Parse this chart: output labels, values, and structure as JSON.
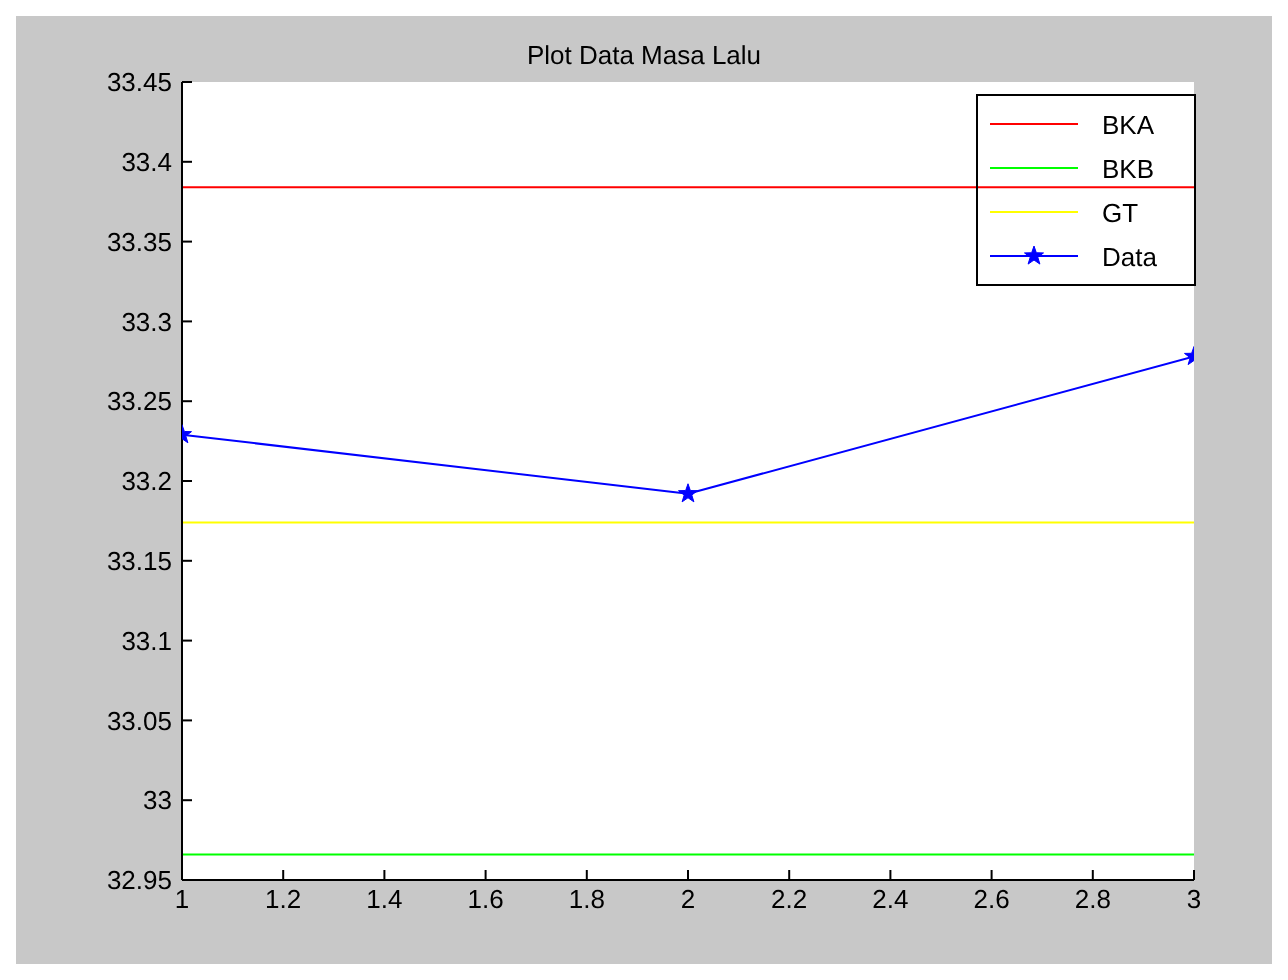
{
  "chart_data": {
    "type": "line",
    "title": "Plot Data Masa Lalu",
    "xlim": [
      1,
      3
    ],
    "xticks": [
      1,
      1.2,
      1.4,
      1.6,
      1.8,
      2,
      2.2,
      2.4,
      2.6,
      2.8,
      3
    ],
    "ylim": [
      32.95,
      33.45
    ],
    "yticks": [
      32.95,
      33,
      33.05,
      33.1,
      33.15,
      33.2,
      33.25,
      33.3,
      33.35,
      33.4,
      33.45
    ],
    "legend": "top right",
    "series": [
      {
        "name": "BKA",
        "color": "#ff0000",
        "x": [
          1,
          3
        ],
        "values": [
          33.384,
          33.384
        ],
        "marker": "none"
      },
      {
        "name": "BKB",
        "color": "#00ff00",
        "x": [
          1,
          3
        ],
        "values": [
          32.966,
          32.966
        ],
        "marker": "none"
      },
      {
        "name": "GT",
        "color": "#ffff00",
        "x": [
          1,
          3
        ],
        "values": [
          33.174,
          33.174
        ],
        "marker": "none"
      },
      {
        "name": "Data",
        "color": "#0000ff",
        "x": [
          1,
          2,
          3
        ],
        "values": [
          33.229,
          33.192,
          33.278
        ],
        "marker": "star"
      }
    ]
  }
}
